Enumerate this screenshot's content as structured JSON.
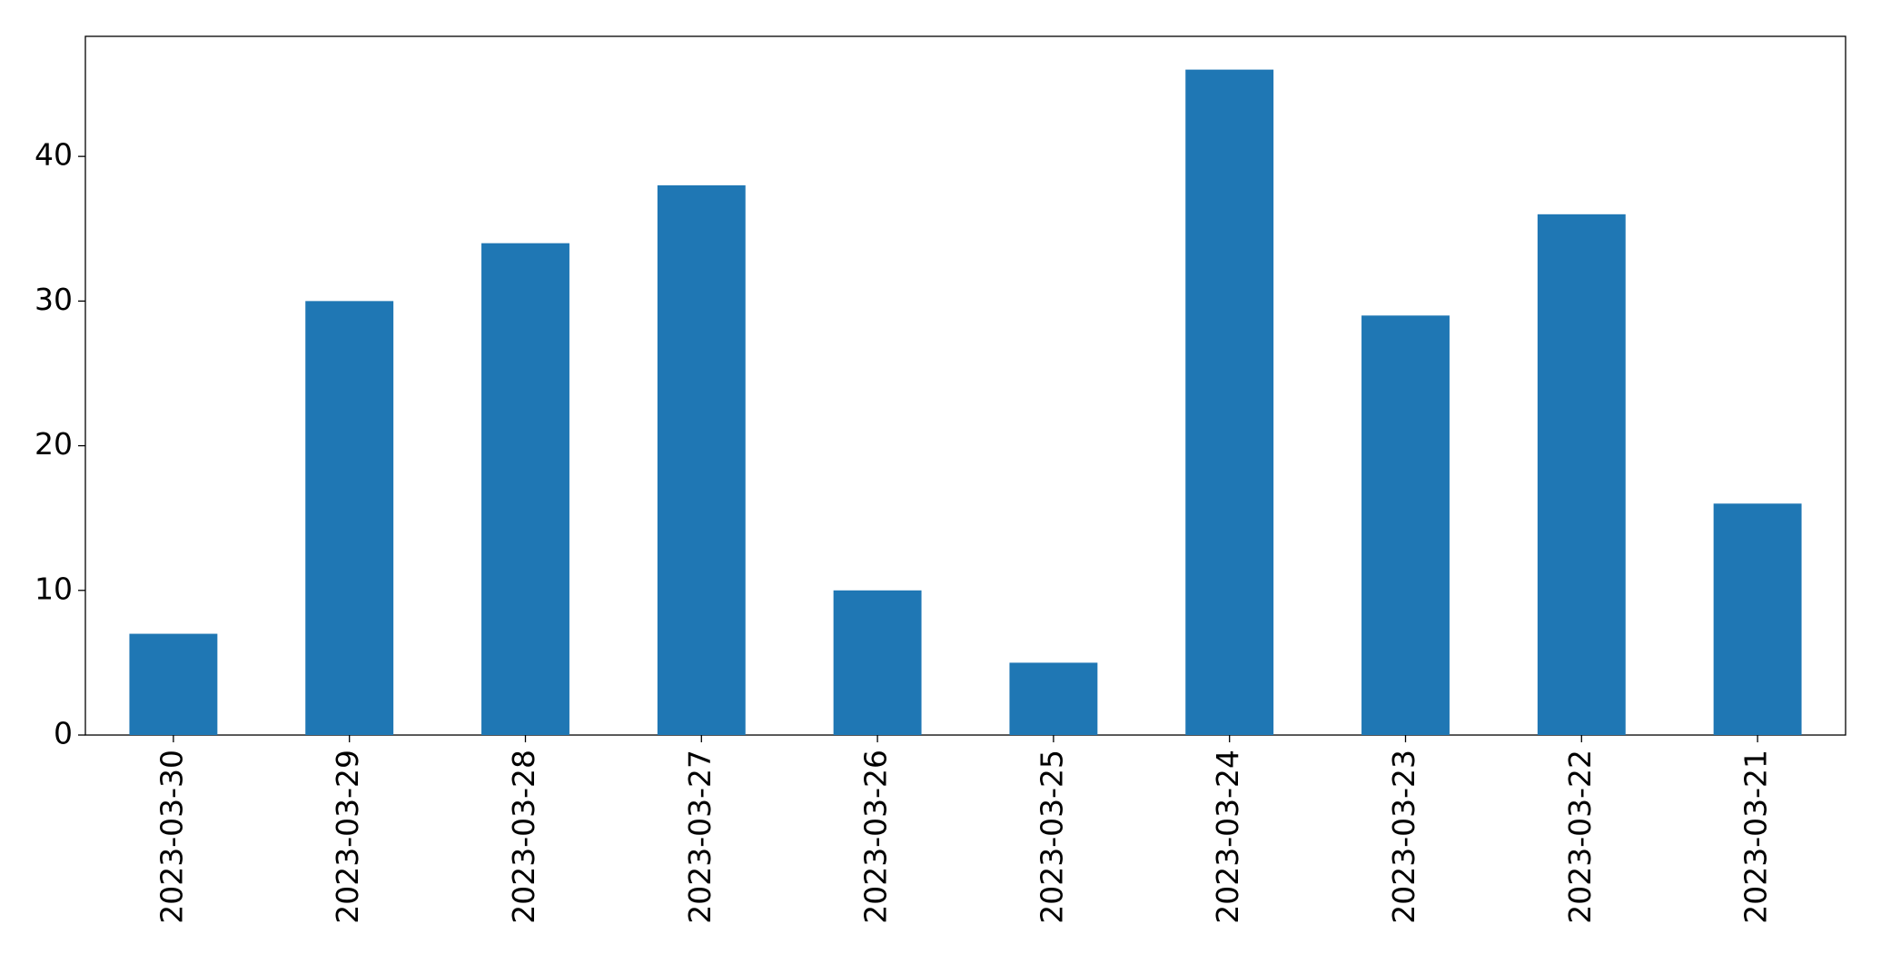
{
  "chart_data": {
    "type": "bar",
    "categories": [
      "2023-03-30",
      "2023-03-29",
      "2023-03-28",
      "2023-03-27",
      "2023-03-26",
      "2023-03-25",
      "2023-03-24",
      "2023-03-23",
      "2023-03-22",
      "2023-03-21"
    ],
    "values": [
      7,
      30,
      34,
      38,
      10,
      5,
      46,
      29,
      36,
      16
    ],
    "color": "#1f77b4",
    "ylim": [
      0,
      48.3
    ],
    "yticks": [
      0,
      10,
      20,
      30,
      40
    ]
  }
}
